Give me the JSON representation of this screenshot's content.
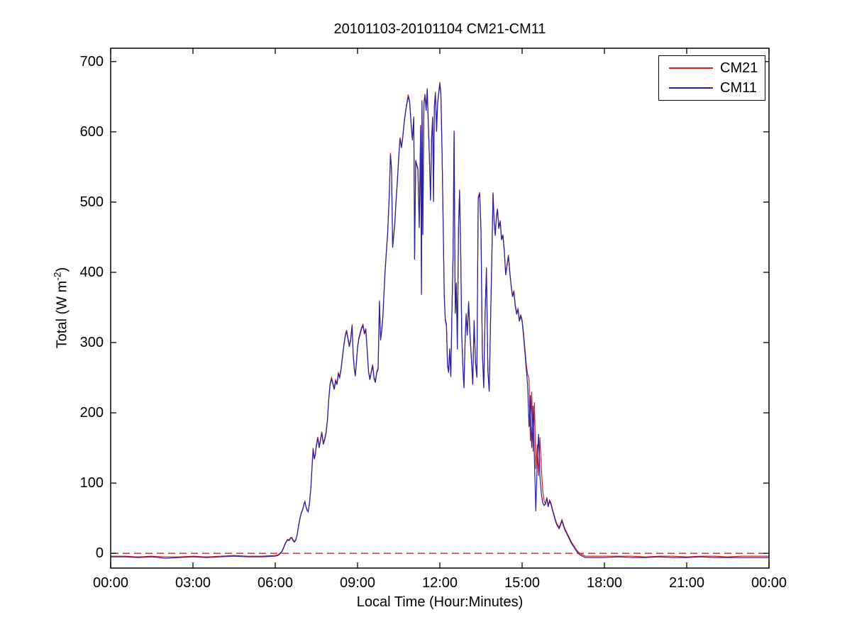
{
  "labels": {
    "ylabel_text": "Total (W m",
    "ylabel_sup": "-2",
    "ylabel_close": ")"
  },
  "chart_data": {
    "type": "line",
    "title": "20101103-20101104 CM21-CM11",
    "xlabel": "Local Time (Hour:Minutes)",
    "ylabel": "Total (W m⁻²)",
    "xlim_hours": [
      0,
      24
    ],
    "ylim": [
      -21,
      719
    ],
    "grid": false,
    "legend_position": "top-right",
    "xticks": [
      {
        "hour": 0,
        "label": "00:00"
      },
      {
        "hour": 3,
        "label": "03:00"
      },
      {
        "hour": 6,
        "label": "06:00"
      },
      {
        "hour": 9,
        "label": "09:00"
      },
      {
        "hour": 12,
        "label": "12:00"
      },
      {
        "hour": 15,
        "label": "15:00"
      },
      {
        "hour": 18,
        "label": "18:00"
      },
      {
        "hour": 21,
        "label": "21:00"
      },
      {
        "hour": 24,
        "label": "00:00"
      }
    ],
    "yticks": [
      0,
      100,
      200,
      300,
      400,
      500,
      600,
      700
    ],
    "zero_line": {
      "y": 0,
      "color": "#cc2222",
      "style": "dashed"
    },
    "series": [
      {
        "name": "CM21",
        "color": "#cc2222"
      },
      {
        "name": "CM11",
        "color": "#2222aa"
      }
    ],
    "points_format": [
      "hour",
      "CM21",
      "CM11"
    ],
    "points": [
      [
        0,
        -4,
        -5
      ],
      [
        0.5,
        -4,
        -5
      ],
      [
        1,
        -5,
        -6
      ],
      [
        1.5,
        -4,
        -5
      ],
      [
        2,
        -5,
        -7
      ],
      [
        2.5,
        -5,
        -6
      ],
      [
        3,
        -4,
        -5
      ],
      [
        3.5,
        -5,
        -6
      ],
      [
        4,
        -4,
        -5
      ],
      [
        4.5,
        -3,
        -4
      ],
      [
        5,
        -4,
        -5
      ],
      [
        5.5,
        -4,
        -5
      ],
      [
        6,
        -3,
        -4
      ],
      [
        6.1,
        -2,
        -3
      ],
      [
        6.2,
        1,
        0
      ],
      [
        6.25,
        4,
        3
      ],
      [
        6.3,
        8,
        7
      ],
      [
        6.35,
        13,
        12
      ],
      [
        6.4,
        17,
        16
      ],
      [
        6.45,
        20,
        19
      ],
      [
        6.5,
        19,
        18
      ],
      [
        6.55,
        22,
        21
      ],
      [
        6.6,
        23,
        22
      ],
      [
        6.65,
        19,
        18
      ],
      [
        6.7,
        17,
        16
      ],
      [
        6.75,
        20,
        19
      ],
      [
        6.8,
        27,
        26
      ],
      [
        6.85,
        40,
        39
      ],
      [
        6.9,
        50,
        49
      ],
      [
        6.95,
        58,
        57
      ],
      [
        7,
        63,
        62
      ],
      [
        7.05,
        71,
        70
      ],
      [
        7.08,
        74,
        73
      ],
      [
        7.12,
        67,
        66
      ],
      [
        7.16,
        62,
        61
      ],
      [
        7.2,
        60,
        59
      ],
      [
        7.25,
        72,
        71
      ],
      [
        7.3,
        95,
        94
      ],
      [
        7.35,
        130,
        128
      ],
      [
        7.38,
        150,
        148
      ],
      [
        7.42,
        136,
        134
      ],
      [
        7.46,
        142,
        140
      ],
      [
        7.5,
        155,
        153
      ],
      [
        7.55,
        166,
        164
      ],
      [
        7.6,
        152,
        150
      ],
      [
        7.65,
        163,
        161
      ],
      [
        7.7,
        173,
        171
      ],
      [
        7.75,
        157,
        155
      ],
      [
        7.8,
        163,
        161
      ],
      [
        7.85,
        172,
        170
      ],
      [
        7.9,
        190,
        188
      ],
      [
        7.95,
        220,
        218
      ],
      [
        8,
        242,
        240
      ],
      [
        8.05,
        250,
        248
      ],
      [
        8.1,
        243,
        241
      ],
      [
        8.15,
        235,
        233
      ],
      [
        8.2,
        247,
        245
      ],
      [
        8.25,
        242,
        240
      ],
      [
        8.3,
        257,
        255
      ],
      [
        8.35,
        252,
        250
      ],
      [
        8.4,
        264,
        262
      ],
      [
        8.45,
        280,
        278
      ],
      [
        8.5,
        297,
        295
      ],
      [
        8.55,
        310,
        308
      ],
      [
        8.6,
        318,
        316
      ],
      [
        8.65,
        307,
        305
      ],
      [
        8.7,
        296,
        294
      ],
      [
        8.75,
        305,
        303
      ],
      [
        8.8,
        326,
        324
      ],
      [
        8.84,
        285,
        283
      ],
      [
        8.88,
        264,
        262
      ],
      [
        8.92,
        254,
        252
      ],
      [
        8.96,
        274,
        272
      ],
      [
        9,
        294,
        292
      ],
      [
        9.05,
        307,
        305
      ],
      [
        9.1,
        315,
        313
      ],
      [
        9.15,
        322,
        320
      ],
      [
        9.2,
        326,
        324
      ],
      [
        9.25,
        314,
        312
      ],
      [
        9.3,
        320,
        318
      ],
      [
        9.35,
        292,
        290
      ],
      [
        9.4,
        260,
        258
      ],
      [
        9.45,
        249,
        247
      ],
      [
        9.5,
        259,
        257
      ],
      [
        9.55,
        269,
        267
      ],
      [
        9.6,
        251,
        249
      ],
      [
        9.65,
        245,
        243
      ],
      [
        9.7,
        259,
        257
      ],
      [
        9.75,
        264,
        262
      ],
      [
        9.8,
        360,
        358
      ],
      [
        9.84,
        305,
        303
      ],
      [
        9.88,
        318,
        316
      ],
      [
        9.92,
        336,
        334
      ],
      [
        9.96,
        368,
        366
      ],
      [
        10,
        400,
        398
      ],
      [
        10.05,
        430,
        428
      ],
      [
        10.1,
        458,
        456
      ],
      [
        10.15,
        505,
        503
      ],
      [
        10.2,
        570,
        567
      ],
      [
        10.24,
        548,
        546
      ],
      [
        10.28,
        437,
        435
      ],
      [
        10.32,
        454,
        452
      ],
      [
        10.36,
        472,
        470
      ],
      [
        10.4,
        500,
        498
      ],
      [
        10.45,
        530,
        528
      ],
      [
        10.5,
        564,
        562
      ],
      [
        10.55,
        592,
        590
      ],
      [
        10.6,
        579,
        577
      ],
      [
        10.65,
        594,
        592
      ],
      [
        10.7,
        614,
        612
      ],
      [
        10.75,
        630,
        628
      ],
      [
        10.8,
        642,
        640
      ],
      [
        10.85,
        653,
        650
      ],
      [
        10.9,
        643,
        641
      ],
      [
        10.95,
        614,
        612
      ],
      [
        11,
        590,
        588
      ],
      [
        11.05,
        622,
        620
      ],
      [
        11.08,
        420,
        418
      ],
      [
        11.12,
        560,
        558
      ],
      [
        11.16,
        554,
        552
      ],
      [
        11.2,
        548,
        546
      ],
      [
        11.25,
        465,
        463
      ],
      [
        11.3,
        610,
        608
      ],
      [
        11.33,
        370,
        368
      ],
      [
        11.35,
        645,
        643
      ],
      [
        11.38,
        455,
        453
      ],
      [
        11.42,
        642,
        640
      ],
      [
        11.46,
        654,
        652
      ],
      [
        11.5,
        632,
        630
      ],
      [
        11.54,
        662,
        660
      ],
      [
        11.58,
        612,
        610
      ],
      [
        11.62,
        564,
        562
      ],
      [
        11.66,
        504,
        502
      ],
      [
        11.7,
        592,
        590
      ],
      [
        11.74,
        622,
        620
      ],
      [
        11.77,
        502,
        500
      ],
      [
        11.8,
        637,
        635
      ],
      [
        11.84,
        657,
        655
      ],
      [
        11.88,
        602,
        600
      ],
      [
        11.92,
        642,
        640
      ],
      [
        11.96,
        657,
        655
      ],
      [
        12,
        671,
        668
      ],
      [
        12.04,
        655,
        652
      ],
      [
        12.08,
        574,
        572
      ],
      [
        12.12,
        477,
        475
      ],
      [
        12.16,
        369,
        367
      ],
      [
        12.2,
        333,
        331
      ],
      [
        12.24,
        327,
        325
      ],
      [
        12.28,
        269,
        267
      ],
      [
        12.32,
        259,
        257
      ],
      [
        12.36,
        292,
        290
      ],
      [
        12.4,
        253,
        251
      ],
      [
        12.44,
        342,
        340
      ],
      [
        12.48,
        422,
        420
      ],
      [
        12.52,
        602,
        600
      ],
      [
        12.56,
        343,
        341
      ],
      [
        12.6,
        386,
        384
      ],
      [
        12.64,
        292,
        290
      ],
      [
        12.68,
        462,
        460
      ],
      [
        12.72,
        518,
        516
      ],
      [
        12.76,
        432,
        430
      ],
      [
        12.8,
        312,
        310
      ],
      [
        12.84,
        266,
        264
      ],
      [
        12.88,
        237,
        235
      ],
      [
        12.92,
        302,
        300
      ],
      [
        12.96,
        342,
        340
      ],
      [
        13,
        312,
        310
      ],
      [
        13.05,
        359,
        357
      ],
      [
        13.1,
        313,
        311
      ],
      [
        13.15,
        278,
        276
      ],
      [
        13.2,
        242,
        240
      ],
      [
        13.25,
        332,
        330
      ],
      [
        13.3,
        272,
        270
      ],
      [
        13.35,
        252,
        250
      ],
      [
        13.4,
        507,
        505
      ],
      [
        13.45,
        514,
        512
      ],
      [
        13.5,
        462,
        460
      ],
      [
        13.55,
        288,
        286
      ],
      [
        13.6,
        237,
        235
      ],
      [
        13.65,
        342,
        340
      ],
      [
        13.7,
        407,
        405
      ],
      [
        13.75,
        262,
        260
      ],
      [
        13.8,
        232,
        230
      ],
      [
        13.85,
        332,
        330
      ],
      [
        13.9,
        432,
        430
      ],
      [
        13.94,
        514,
        512
      ],
      [
        13.98,
        472,
        470
      ],
      [
        14.02,
        454,
        452
      ],
      [
        14.06,
        480,
        478
      ],
      [
        14.1,
        491,
        489
      ],
      [
        14.15,
        464,
        462
      ],
      [
        14.2,
        474,
        472
      ],
      [
        14.25,
        448,
        446
      ],
      [
        14.3,
        454,
        452
      ],
      [
        14.35,
        432,
        430
      ],
      [
        14.4,
        398,
        396
      ],
      [
        14.45,
        411,
        409
      ],
      [
        14.5,
        425,
        423
      ],
      [
        14.55,
        402,
        400
      ],
      [
        14.6,
        382,
        380
      ],
      [
        14.65,
        367,
        365
      ],
      [
        14.7,
        374,
        372
      ],
      [
        14.75,
        354,
        352
      ],
      [
        14.8,
        342,
        340
      ],
      [
        14.85,
        349,
        347
      ],
      [
        14.9,
        332,
        330
      ],
      [
        14.95,
        340,
        338
      ],
      [
        15,
        332,
        330
      ],
      [
        15.05,
        315,
        310
      ],
      [
        15.1,
        292,
        286
      ],
      [
        15.15,
        270,
        262
      ],
      [
        15.2,
        255,
        240
      ],
      [
        15.25,
        248,
        180
      ],
      [
        15.3,
        160,
        225
      ],
      [
        15.35,
        230,
        150
      ],
      [
        15.4,
        145,
        210
      ],
      [
        15.45,
        215,
        130
      ],
      [
        15.5,
        120,
        60
      ],
      [
        15.55,
        155,
        128
      ],
      [
        15.6,
        110,
        170
      ],
      [
        15.65,
        165,
        110
      ],
      [
        15.7,
        120,
        85
      ],
      [
        15.75,
        90,
        72
      ],
      [
        15.8,
        75,
        68
      ],
      [
        15.85,
        70,
        71
      ],
      [
        15.9,
        80,
        78
      ],
      [
        15.95,
        68,
        66
      ],
      [
        16,
        76,
        74
      ],
      [
        16.05,
        72,
        70
      ],
      [
        16.1,
        64,
        62
      ],
      [
        16.15,
        57,
        55
      ],
      [
        16.2,
        50,
        48
      ],
      [
        16.25,
        44,
        42
      ],
      [
        16.3,
        40,
        38
      ],
      [
        16.35,
        37,
        35
      ],
      [
        16.4,
        42,
        40
      ],
      [
        16.45,
        48,
        46
      ],
      [
        16.5,
        42,
        40
      ],
      [
        16.55,
        36,
        34
      ],
      [
        16.6,
        32,
        30
      ],
      [
        16.65,
        28,
        26
      ],
      [
        16.7,
        24,
        22
      ],
      [
        16.75,
        20,
        18
      ],
      [
        16.8,
        16,
        14
      ],
      [
        16.85,
        13,
        11
      ],
      [
        16.9,
        10,
        8
      ],
      [
        16.95,
        7,
        5
      ],
      [
        17,
        4,
        2
      ],
      [
        17.1,
        0,
        -2
      ],
      [
        17.2,
        -2,
        -4
      ],
      [
        17.3,
        -4,
        -6
      ],
      [
        17.5,
        -4,
        -6
      ],
      [
        18,
        -4,
        -6
      ],
      [
        18.5,
        -4,
        -5
      ],
      [
        19,
        -4,
        -6
      ],
      [
        19.5,
        -5,
        -6
      ],
      [
        20,
        -4,
        -5
      ],
      [
        20.5,
        -4,
        -6
      ],
      [
        21,
        -5,
        -6
      ],
      [
        21.5,
        -4,
        -5
      ],
      [
        22,
        -4,
        -6
      ],
      [
        22.5,
        -5,
        -6
      ],
      [
        23,
        -4,
        -6
      ],
      [
        23.5,
        -4,
        -6
      ],
      [
        24,
        -4,
        -6
      ]
    ]
  }
}
